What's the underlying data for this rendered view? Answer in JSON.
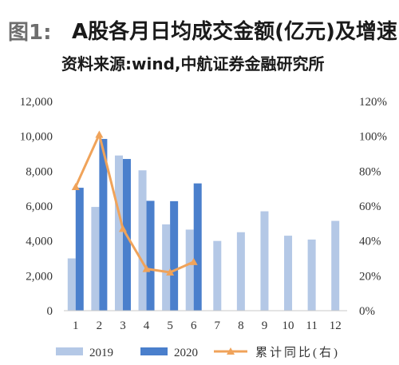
{
  "header": {
    "figure_label": "图1:",
    "title": "A股各月日均成交金额(亿元)及增速",
    "source": "资料来源:wind,中航证券金融研究所"
  },
  "colors": {
    "series_2019": "#b4c8e6",
    "series_2020": "#4a7fcc",
    "yoy_line": "#f0a35a",
    "axis": "#c8c8c8",
    "text": "#333333"
  },
  "chart_data": {
    "type": "bar",
    "categories": [
      "1",
      "2",
      "3",
      "4",
      "5",
      "6",
      "7",
      "8",
      "9",
      "10",
      "11",
      "12"
    ],
    "ylim": [
      0,
      12000
    ],
    "y2lim": [
      0,
      1.2
    ],
    "y_ticks": [
      "0",
      "2,000",
      "4,000",
      "6,000",
      "8,000",
      "10,000",
      "12,000"
    ],
    "y2_ticks": [
      "0%",
      "20%",
      "40%",
      "60%",
      "80%",
      "100%",
      "120%"
    ],
    "grid": false,
    "legend_position": "bottom",
    "series": [
      {
        "name": "2019",
        "kind": "bar",
        "axis": "left",
        "values": [
          3000,
          5950,
          8900,
          8050,
          4950,
          4650,
          4000,
          4500,
          5700,
          4300,
          4080,
          5150
        ]
      },
      {
        "name": "2020",
        "kind": "bar",
        "axis": "left",
        "values": [
          7050,
          9850,
          8700,
          6300,
          6280,
          7300,
          null,
          null,
          null,
          null,
          null,
          null
        ]
      },
      {
        "name": "累计同比(右)",
        "kind": "line",
        "axis": "right",
        "values": [
          0.71,
          1.01,
          0.47,
          0.24,
          0.22,
          0.28,
          null,
          null,
          null,
          null,
          null,
          null
        ]
      }
    ]
  }
}
